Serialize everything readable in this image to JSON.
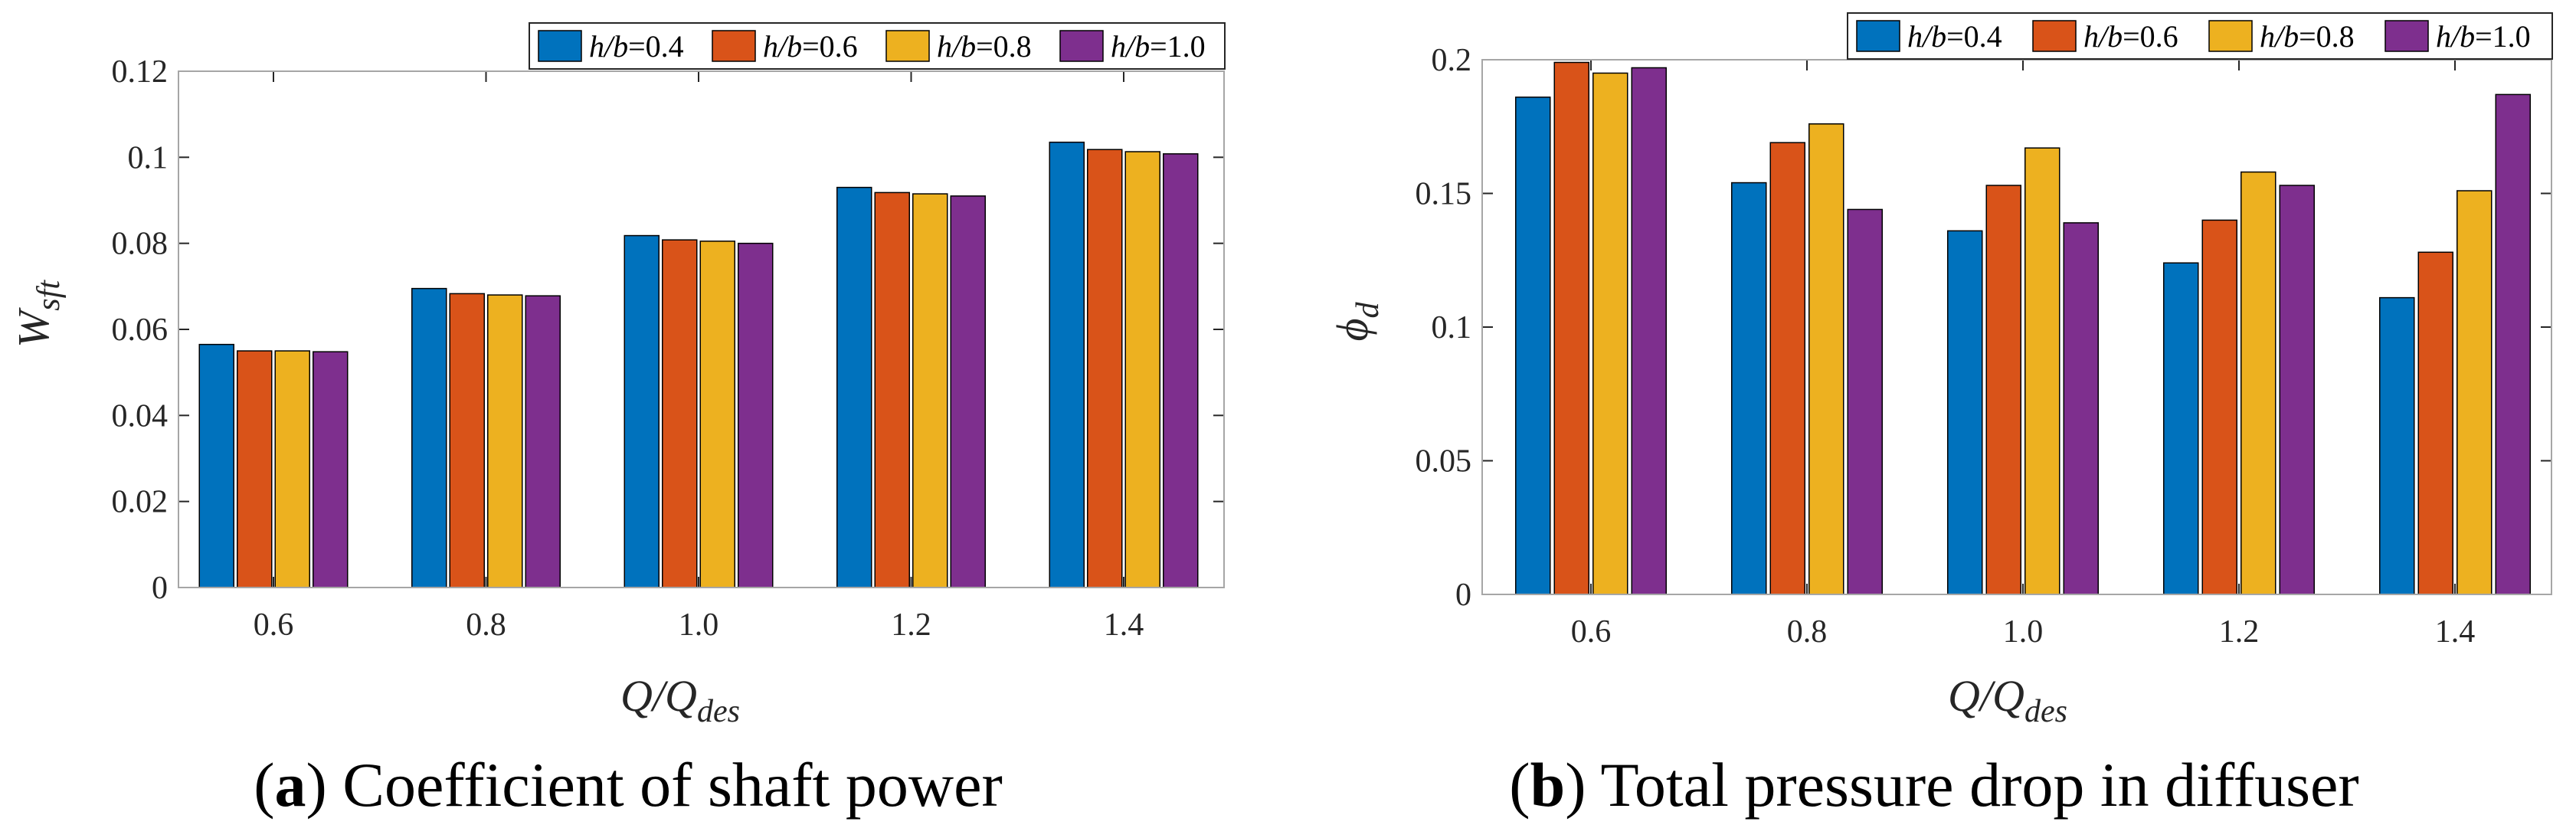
{
  "chart_data": [
    {
      "type": "bar",
      "title": "",
      "xlabel": "Q/Q_des",
      "ylabel": "W_sft",
      "ylim": [
        0,
        0.12
      ],
      "yticks": [
        "0",
        "0.02",
        "0.04",
        "0.06",
        "0.08",
        "0.1",
        "0.12"
      ],
      "ytick_values": [
        0,
        0.02,
        0.04,
        0.06,
        0.08,
        0.1,
        0.12
      ],
      "categories": [
        "0.6",
        "0.8",
        "1.0",
        "1.2",
        "1.4"
      ],
      "series": [
        {
          "name": "h/b=0.4",
          "values": [
            0.0565,
            0.0695,
            0.0818,
            0.093,
            0.1035
          ]
        },
        {
          "name": "h/b=0.6",
          "values": [
            0.055,
            0.0683,
            0.0808,
            0.0918,
            0.1018
          ]
        },
        {
          "name": "h/b=0.8",
          "values": [
            0.055,
            0.068,
            0.0805,
            0.0915,
            0.1013
          ]
        },
        {
          "name": "h/b=1.0",
          "values": [
            0.0548,
            0.0678,
            0.08,
            0.091,
            0.1008
          ]
        }
      ],
      "legend_position": "top-right",
      "grid": false,
      "caption": {
        "letter": "a",
        "text": " Coefficient of shaft power"
      }
    },
    {
      "type": "bar",
      "title": "",
      "xlabel": "Q/Q_des",
      "ylabel": "phi_d",
      "ylim": [
        0,
        0.2
      ],
      "yticks": [
        "0",
        "0.05",
        "0.1",
        "0.15",
        "0.2"
      ],
      "ytick_values": [
        0,
        0.05,
        0.1,
        0.15,
        0.2
      ],
      "categories": [
        "0.6",
        "0.8",
        "1.0",
        "1.2",
        "1.4"
      ],
      "series": [
        {
          "name": "h/b=0.4",
          "values": [
            0.186,
            0.154,
            0.136,
            0.124,
            0.111
          ]
        },
        {
          "name": "h/b=0.6",
          "values": [
            0.199,
            0.169,
            0.153,
            0.14,
            0.128
          ]
        },
        {
          "name": "h/b=0.8",
          "values": [
            0.195,
            0.176,
            0.167,
            0.158,
            0.151
          ]
        },
        {
          "name": "h/b=1.0",
          "values": [
            0.197,
            0.144,
            0.139,
            0.153,
            0.187
          ]
        }
      ],
      "legend_position": "top-right",
      "grid": false,
      "caption": {
        "letter": "b",
        "text": " Total pressure drop in diffuser"
      }
    }
  ],
  "labels": {
    "x_main": "Q/Q",
    "x_sub": "des",
    "a_y_main": "W",
    "a_y_sub": "sft",
    "b_y_main": "ϕ",
    "b_y_sub": "d",
    "legend_var": "h/b",
    "legend_vals": [
      "=0.4",
      "=0.6",
      "=0.8",
      "=1.0"
    ],
    "cap_a_open": "(",
    "cap_a_letter": "a",
    "cap_a_rest": ") Coefficient of shaft power",
    "cap_b_open": "(",
    "cap_b_letter": "b",
    "cap_b_rest": ") Total pressure drop in diffuser"
  },
  "colors": {
    "series": [
      "#0072BD",
      "#D95319",
      "#EDB120",
      "#7E2F8E"
    ],
    "axis": "#262626",
    "frame": "#A6A6A6"
  }
}
